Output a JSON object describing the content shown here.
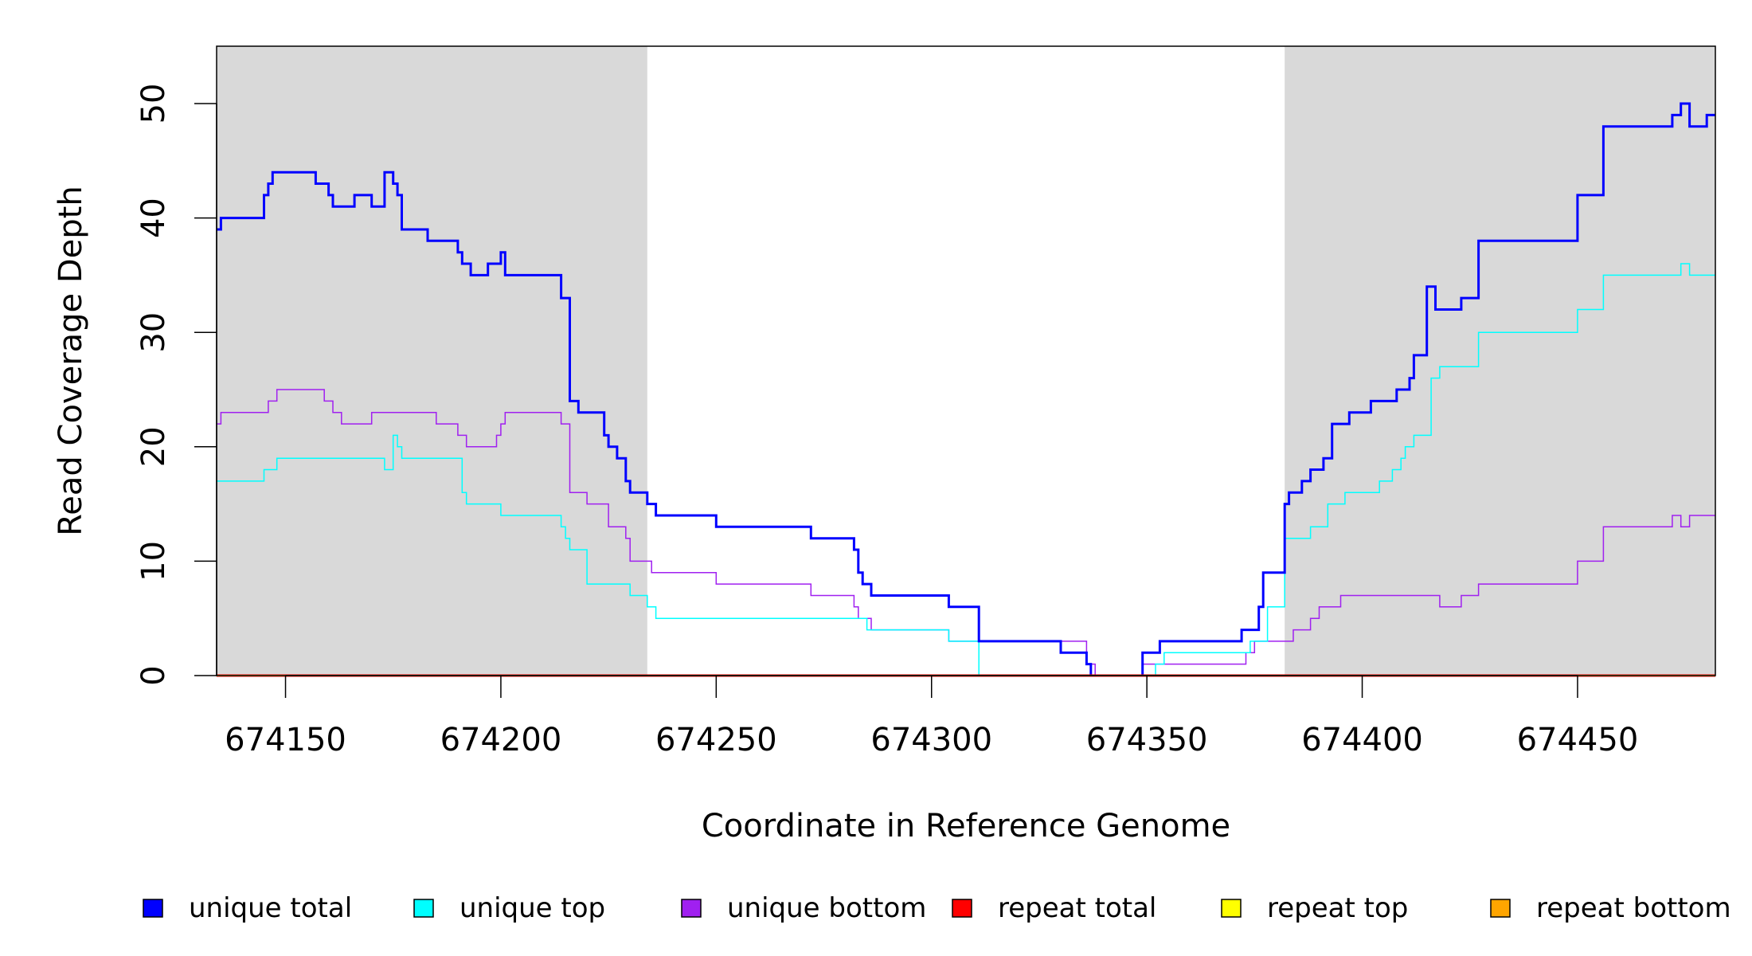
{
  "chart_data": {
    "type": "line",
    "step": true,
    "title": "",
    "xlabel": "Coordinate in Reference Genome",
    "ylabel": "Read Coverage Depth",
    "xlim": [
      674134,
      674482
    ],
    "ylim": [
      0,
      55
    ],
    "x_ticks": [
      674150,
      674200,
      674250,
      674300,
      674350,
      674400,
      674450
    ],
    "y_ticks": [
      0,
      10,
      20,
      30,
      40,
      50
    ],
    "shaded_regions": [
      [
        674134,
        674234
      ],
      [
        674382,
        674482
      ]
    ],
    "legend": [
      {
        "label": "unique total",
        "color": "#0000ff"
      },
      {
        "label": "unique top",
        "color": "#00ffff"
      },
      {
        "label": "unique bottom",
        "color": "#a020f0"
      },
      {
        "label": "repeat total",
        "color": "#ff0000"
      },
      {
        "label": "repeat top",
        "color": "#ffff00"
      },
      {
        "label": "repeat bottom",
        "color": "#ffa500"
      }
    ],
    "series": [
      {
        "name": "unique total",
        "color": "#0000ff",
        "width": 3,
        "x": [
          674134,
          674135,
          674145,
          674146,
          674147,
          674149,
          674157,
          674160,
          674161,
          674166,
          674170,
          674173,
          674175,
          674176,
          674177,
          674178,
          674183,
          674190,
          674191,
          674193,
          674197,
          674200,
          674201,
          674206,
          674214,
          674216,
          674218,
          674224,
          674225,
          674227,
          674229,
          674230,
          674231,
          674234,
          674236,
          674250,
          674269,
          674272,
          674282,
          674283,
          674284,
          674286,
          674304,
          674311,
          674330,
          674336,
          674337,
          674338,
          674349,
          674353,
          674354,
          674372,
          674376,
          674377,
          674382,
          674383,
          674386,
          674388,
          674391,
          674393,
          674395,
          674397,
          674399,
          674402,
          674403,
          674408,
          674411,
          674412,
          674413,
          674414,
          674415,
          674417,
          674418,
          674423,
          674427,
          674450,
          674456,
          674470,
          674472,
          674474,
          674476,
          674480,
          674482
        ],
        "y": [
          39,
          40,
          42,
          43,
          44,
          44,
          43,
          42,
          41,
          42,
          41,
          44,
          43,
          42,
          39,
          39,
          38,
          37,
          36,
          35,
          36,
          37,
          35,
          35,
          33,
          24,
          23,
          21,
          20,
          19,
          17,
          16,
          16,
          15,
          14,
          13,
          13,
          12,
          11,
          9,
          8,
          7,
          6,
          3,
          2,
          1,
          0,
          0,
          2,
          3,
          3,
          4,
          6,
          9,
          15,
          16,
          17,
          18,
          19,
          22,
          22,
          23,
          23,
          24,
          24,
          25,
          26,
          28,
          28,
          28,
          34,
          32,
          32,
          33,
          38,
          42,
          48,
          48,
          49,
          50,
          48,
          49,
          49
        ]
      },
      {
        "name": "unique top",
        "color": "#00ffff",
        "width": 1.5,
        "x": [
          674134,
          674145,
          674148,
          674150,
          674160,
          674170,
          674173,
          674175,
          674176,
          674177,
          674191,
          674192,
          674200,
          674206,
          674214,
          674215,
          674216,
          674220,
          674225,
          674230,
          674234,
          674236,
          674250,
          674270,
          674282,
          674285,
          674304,
          674311,
          674338,
          674349,
          674352,
          674354,
          674370,
          674374,
          674378,
          674382,
          674388,
          674392,
          674396,
          674400,
          674404,
          674407,
          674409,
          674410,
          674412,
          674416,
          674418,
          674427,
          674450,
          674456,
          674470,
          674474,
          674476,
          674482
        ],
        "y": [
          17,
          18,
          19,
          19,
          19,
          19,
          18,
          21,
          20,
          19,
          16,
          15,
          14,
          14,
          13,
          12,
          11,
          8,
          8,
          7,
          6,
          5,
          5,
          5,
          5,
          4,
          3,
          0,
          0,
          0,
          1,
          2,
          2,
          3,
          6,
          12,
          13,
          15,
          16,
          16,
          17,
          18,
          19,
          20,
          21,
          26,
          27,
          30,
          32,
          35,
          35,
          36,
          35,
          35
        ]
      },
      {
        "name": "unique bottom",
        "color": "#a020f0",
        "width": 1.5,
        "x": [
          674134,
          674135,
          674145,
          674146,
          674148,
          674156,
          674159,
          674161,
          674163,
          674166,
          674170,
          674177,
          674185,
          674188,
          674190,
          674192,
          674199,
          674200,
          674201,
          674206,
          674214,
          674216,
          674220,
          674225,
          674227,
          674229,
          674230,
          674235,
          674250,
          674269,
          674272,
          674282,
          674283,
          674286,
          674304,
          674311,
          674336,
          674338,
          674349,
          674353,
          674355,
          674372,
          674373,
          674375,
          674378,
          674382,
          674384,
          674386,
          674388,
          674389,
          674390,
          674392,
          674395,
          674408,
          674413,
          674416,
          674418,
          674420,
          674423,
          674427,
          674450,
          674456,
          674470,
          674472,
          674474,
          674476,
          674482
        ],
        "y": [
          22,
          23,
          23,
          24,
          25,
          25,
          24,
          23,
          22,
          22,
          23,
          23,
          22,
          22,
          21,
          20,
          21,
          22,
          23,
          23,
          22,
          16,
          15,
          13,
          13,
          12,
          10,
          9,
          8,
          8,
          7,
          6,
          5,
          4,
          3,
          3,
          1,
          0,
          1,
          1,
          1,
          1,
          2,
          3,
          3,
          3,
          4,
          4,
          5,
          5,
          6,
          6,
          7,
          7,
          7,
          7,
          6,
          6,
          7,
          8,
          10,
          13,
          13,
          14,
          13,
          14,
          14
        ]
      },
      {
        "name": "repeat total",
        "color": "#ff0000",
        "width": 3,
        "x": [
          674134,
          674482
        ],
        "y": [
          0,
          0
        ]
      },
      {
        "name": "repeat top",
        "color": "#ffff00",
        "width": 1.5,
        "x": [
          674134,
          674482
        ],
        "y": [
          0,
          0
        ]
      },
      {
        "name": "repeat bottom",
        "color": "#ffa500",
        "width": 1.5,
        "x": [
          674134,
          674482
        ],
        "y": [
          0,
          0
        ]
      }
    ]
  }
}
